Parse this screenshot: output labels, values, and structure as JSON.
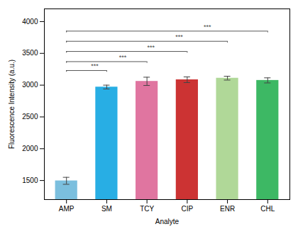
{
  "chart_data": {
    "type": "bar",
    "categories": [
      "AMP",
      "SM",
      "TCY",
      "CIP",
      "ENR",
      "CHL"
    ],
    "values": [
      1495,
      2970,
      3060,
      3085,
      3110,
      3075
    ],
    "errors": [
      55,
      30,
      65,
      45,
      30,
      40
    ],
    "colors": [
      "#7bbfde",
      "#28aee4",
      "#e075a0",
      "#cc3333",
      "#b0d898",
      "#3db864"
    ],
    "xlabel": "Analyte",
    "ylabel": "Fluorescence Intensity (a.u.)",
    "ylim": [
      1200,
      4200
    ],
    "yticks": [
      1500,
      2000,
      2500,
      3000,
      3500,
      4000
    ],
    "annotations": [
      {
        "from": "AMP",
        "to": "SM",
        "y": 3230,
        "label": "***"
      },
      {
        "from": "AMP",
        "to": "TCY",
        "y": 3370,
        "label": "***"
      },
      {
        "from": "AMP",
        "to": "CIP",
        "y": 3530,
        "label": "***"
      },
      {
        "from": "AMP",
        "to": "ENR",
        "y": 3690,
        "label": "***"
      },
      {
        "from": "AMP",
        "to": "CHL",
        "y": 3850,
        "label": "***"
      }
    ],
    "grid": false
  }
}
